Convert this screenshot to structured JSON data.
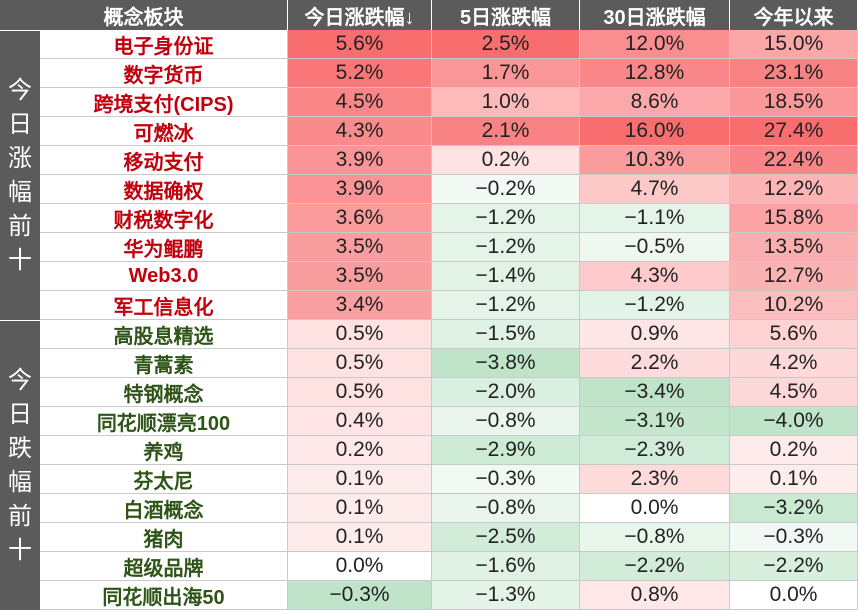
{
  "chart_data": {
    "type": "table",
    "columns": [
      "概念板块",
      "今日涨跌幅↓",
      "5日涨跌幅",
      "30日涨跌幅",
      "今年以来"
    ],
    "groups": [
      {
        "label": "今日涨幅前十",
        "name_color": "#c0000c",
        "rows": [
          {
            "name": "电子身份证",
            "values": [
              "5.6%",
              "2.5%",
              "12.0%",
              "15.0%"
            ]
          },
          {
            "name": "数字货币",
            "values": [
              "5.2%",
              "1.7%",
              "12.8%",
              "23.1%"
            ]
          },
          {
            "name": "跨境支付(CIPS)",
            "values": [
              "4.5%",
              "1.0%",
              "8.6%",
              "18.5%"
            ]
          },
          {
            "name": "可燃冰",
            "values": [
              "4.3%",
              "2.1%",
              "16.0%",
              "27.4%"
            ]
          },
          {
            "name": "移动支付",
            "values": [
              "3.9%",
              "0.2%",
              "10.3%",
              "22.4%"
            ]
          },
          {
            "name": "数据确权",
            "values": [
              "3.9%",
              "−0.2%",
              "4.7%",
              "12.2%"
            ]
          },
          {
            "name": "财税数字化",
            "values": [
              "3.6%",
              "−1.2%",
              "−1.1%",
              "15.8%"
            ]
          },
          {
            "name": "华为鲲鹏",
            "values": [
              "3.5%",
              "−1.2%",
              "−0.5%",
              "13.5%"
            ]
          },
          {
            "name": "Web3.0",
            "values": [
              "3.5%",
              "−1.4%",
              "4.3%",
              "12.7%"
            ]
          },
          {
            "name": "军工信息化",
            "values": [
              "3.4%",
              "−1.2%",
              "−1.2%",
              "10.2%"
            ]
          }
        ]
      },
      {
        "label": "今日跌幅前十",
        "name_color": "#2e5418",
        "rows": [
          {
            "name": "高股息精选",
            "values": [
              "0.5%",
              "−1.5%",
              "0.9%",
              "5.6%"
            ]
          },
          {
            "name": "青蒿素",
            "values": [
              "0.5%",
              "−3.8%",
              "2.2%",
              "4.2%"
            ]
          },
          {
            "name": "特钢概念",
            "values": [
              "0.5%",
              "−2.0%",
              "−3.4%",
              "4.5%"
            ]
          },
          {
            "name": "同花顺漂亮100",
            "values": [
              "0.4%",
              "−0.8%",
              "−3.1%",
              "−4.0%"
            ]
          },
          {
            "name": "养鸡",
            "values": [
              "0.2%",
              "−2.9%",
              "−2.3%",
              "0.2%"
            ]
          },
          {
            "name": "芬太尼",
            "values": [
              "0.1%",
              "−0.3%",
              "2.3%",
              "0.1%"
            ]
          },
          {
            "name": "白酒概念",
            "values": [
              "0.1%",
              "−0.8%",
              "0.0%",
              "−3.2%"
            ]
          },
          {
            "name": "猪肉",
            "values": [
              "0.1%",
              "−2.5%",
              "−0.8%",
              "−0.3%"
            ]
          },
          {
            "name": "超级品牌",
            "values": [
              "0.0%",
              "−1.6%",
              "−2.2%",
              "−2.2%"
            ]
          },
          {
            "name": "同花顺出海50",
            "values": [
              "−0.3%",
              "−1.3%",
              "0.8%",
              "0.0%"
            ]
          }
        ]
      }
    ]
  },
  "colors": {
    "header_bg": "#5b5b5b",
    "header_text": "#ffffff",
    "positive_heat": "#f8696b",
    "negative_heat": "#63be7b",
    "neutral": "#ffffff"
  }
}
